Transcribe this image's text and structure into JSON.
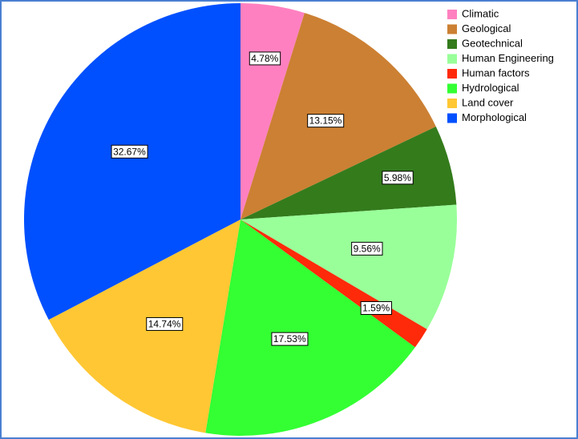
{
  "chart_data": {
    "type": "pie",
    "categories": [
      "Climatic",
      "Geological",
      "Geotechnical",
      "Human Engineering",
      "Human factors",
      "Hydrological",
      "Land cover",
      "Morphological"
    ],
    "values": [
      4.78,
      13.15,
      5.98,
      9.56,
      1.59,
      17.53,
      14.74,
      32.67
    ],
    "value_labels": [
      "4.78%",
      "13.15%",
      "5.98%",
      "9.56%",
      "1.59%",
      "17.53%",
      "14.74%",
      "32.67%"
    ],
    "colors": [
      "#ff80c0",
      "#cc8033",
      "#347b1c",
      "#99ff99",
      "#ff2a0a",
      "#33ff33",
      "#ffc733",
      "#0050ff"
    ]
  }
}
